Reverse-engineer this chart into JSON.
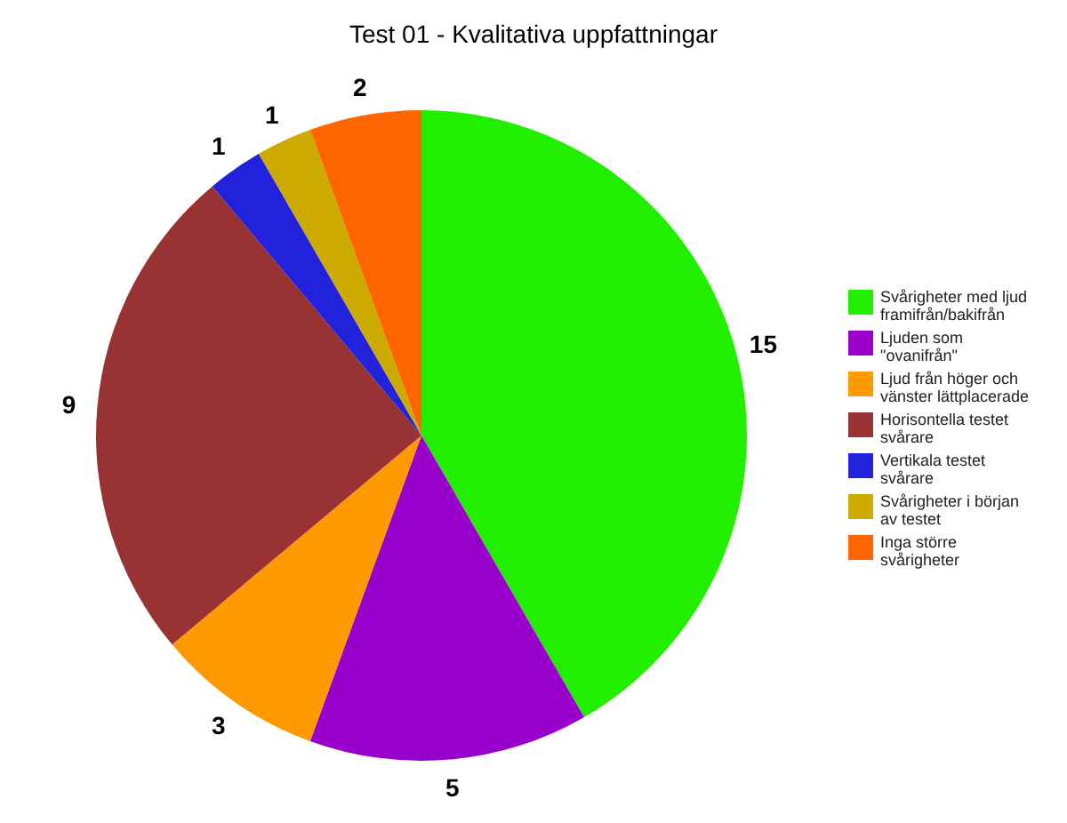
{
  "chart_data": {
    "type": "pie",
    "title": "Test 01 - Kvalitativa uppfattningar",
    "categories": [
      "Svårigheter med ljud framifrån/bakifrån",
      "Ljuden som \"ovanifrån\"",
      "Ljud från höger och vänster lättplacerade",
      "Horisontella testet svårare",
      "Vertikala testet svårare",
      "Svårigheter i början av testet",
      "Inga större svårigheter"
    ],
    "values": [
      15,
      5,
      3,
      9,
      1,
      1,
      2
    ],
    "colors": [
      "#22ee00",
      "#9900cc",
      "#ff9900",
      "#993333",
      "#2222dd",
      "#ccaa00",
      "#ff6600"
    ],
    "data_labels": true,
    "legend": "right"
  }
}
